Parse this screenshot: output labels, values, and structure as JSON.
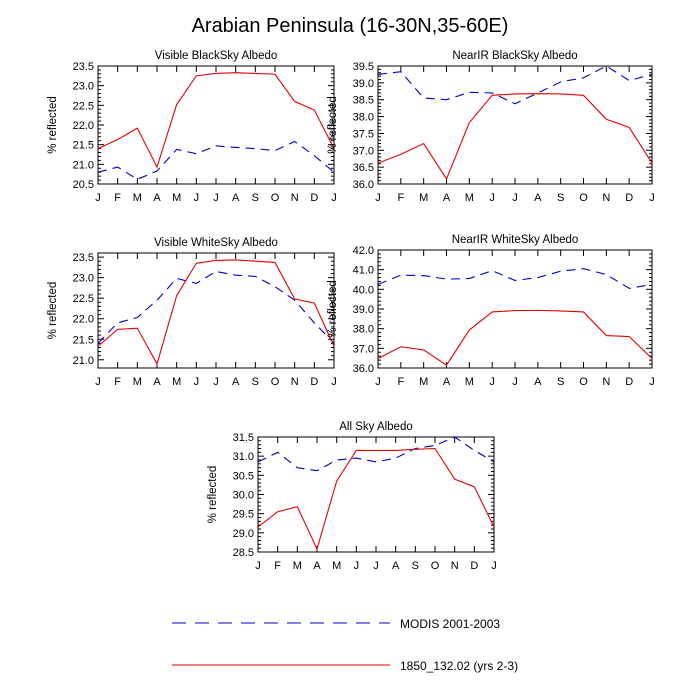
{
  "title": "Arabian Peninsula (16-30N,35-60E)",
  "colors": {
    "modis": "#0000cc",
    "model": "#e60000",
    "axis": "#000000"
  },
  "legend": {
    "placement": "bottom-center",
    "entries": [
      {
        "name": "MODIS 2001-2003",
        "color": "#0000cc",
        "dash": "dashed"
      },
      {
        "name": "1850_132.02 (yrs 2-3)",
        "color": "#e60000",
        "dash": "solid"
      }
    ]
  },
  "chart_data": [
    {
      "type": "line",
      "title": "Visible BlackSky Albedo",
      "xlabel": "",
      "ylabel": "% reflected",
      "categories": [
        "J",
        "F",
        "M",
        "A",
        "M",
        "J",
        "J",
        "A",
        "S",
        "O",
        "N",
        "D",
        "J"
      ],
      "ylim": [
        20.5,
        23.5
      ],
      "yticks": [
        "20.5",
        "21.0",
        "21.5",
        "22.0",
        "22.5",
        "23.0",
        "23.5"
      ],
      "grid": false,
      "series": [
        {
          "name": "MODIS 2001-2003",
          "values": [
            20.8,
            20.93,
            20.62,
            20.83,
            21.38,
            21.27,
            21.47,
            21.43,
            21.4,
            21.35,
            21.58,
            21.22,
            20.8
          ]
        },
        {
          "name": "1850_132.02 (yrs 2-3)",
          "values": [
            21.4,
            21.63,
            21.92,
            20.93,
            22.52,
            23.25,
            23.31,
            23.33,
            23.31,
            23.29,
            22.6,
            22.38,
            21.4
          ]
        }
      ]
    },
    {
      "type": "line",
      "title": "NearIR BlackSky Albedo",
      "xlabel": "",
      "ylabel": "% reflected",
      "categories": [
        "J",
        "F",
        "M",
        "A",
        "M",
        "J",
        "J",
        "A",
        "S",
        "O",
        "N",
        "D",
        "J"
      ],
      "ylim": [
        36.0,
        39.5
      ],
      "yticks": [
        "36.0",
        "36.5",
        "37.0",
        "37.5",
        "38.0",
        "38.5",
        "39.0",
        "39.5"
      ],
      "grid": false,
      "series": [
        {
          "name": "MODIS 2001-2003",
          "values": [
            39.25,
            39.33,
            38.55,
            38.5,
            38.72,
            38.7,
            38.38,
            38.7,
            39.03,
            39.15,
            39.5,
            39.07,
            39.25
          ]
        },
        {
          "name": "1850_132.02 (yrs 2-3)",
          "values": [
            36.62,
            36.88,
            37.2,
            36.15,
            37.82,
            38.63,
            38.67,
            38.68,
            38.67,
            38.63,
            37.92,
            37.68,
            36.62
          ]
        }
      ]
    },
    {
      "type": "line",
      "title": "Visible WhiteSky Albedo",
      "xlabel": "",
      "ylabel": "% reflected",
      "categories": [
        "J",
        "F",
        "M",
        "A",
        "M",
        "J",
        "J",
        "A",
        "S",
        "O",
        "N",
        "D",
        "J"
      ],
      "ylim": [
        20.8,
        23.6
      ],
      "yticks": [
        "21.0",
        "21.5",
        "22.0",
        "22.5",
        "23.0",
        "23.5"
      ],
      "grid": false,
      "series": [
        {
          "name": "MODIS 2001-2003",
          "values": [
            21.4,
            21.9,
            22.03,
            22.45,
            22.98,
            22.86,
            23.15,
            23.06,
            23.03,
            22.78,
            22.45,
            21.9,
            21.4
          ]
        },
        {
          "name": "1850_132.02 (yrs 2-3)",
          "values": [
            21.33,
            21.74,
            21.77,
            20.9,
            22.56,
            23.35,
            23.42,
            23.43,
            23.4,
            23.37,
            22.48,
            22.38,
            21.33
          ]
        }
      ]
    },
    {
      "type": "line",
      "title": "NearIR WhiteSky Albedo",
      "xlabel": "",
      "ylabel": "% reflected",
      "categories": [
        "J",
        "F",
        "M",
        "A",
        "M",
        "J",
        "J",
        "A",
        "S",
        "O",
        "N",
        "D",
        "J"
      ],
      "ylim": [
        36.0,
        42.0
      ],
      "yticks": [
        "36.0",
        "37.0",
        "38.0",
        "39.0",
        "40.0",
        "41.0",
        "42.0"
      ],
      "grid": false,
      "series": [
        {
          "name": "MODIS 2001-2003",
          "values": [
            40.25,
            40.72,
            40.7,
            40.52,
            40.55,
            40.95,
            40.45,
            40.6,
            40.92,
            41.05,
            40.75,
            40.05,
            40.25
          ]
        },
        {
          "name": "1850_132.02 (yrs 2-3)",
          "values": [
            36.48,
            37.08,
            36.92,
            36.15,
            37.93,
            38.85,
            38.92,
            38.93,
            38.9,
            38.85,
            37.65,
            37.6,
            36.48
          ]
        }
      ]
    },
    {
      "type": "line",
      "title": "All Sky Albedo",
      "xlabel": "",
      "ylabel": "% reflected",
      "categories": [
        "J",
        "F",
        "M",
        "A",
        "M",
        "J",
        "J",
        "A",
        "S",
        "O",
        "N",
        "D",
        "J"
      ],
      "ylim": [
        28.5,
        31.5
      ],
      "yticks": [
        "28.5",
        "29.0",
        "29.5",
        "30.0",
        "30.5",
        "31.0",
        "31.5"
      ],
      "grid": false,
      "series": [
        {
          "name": "MODIS 2001-2003",
          "values": [
            30.85,
            31.1,
            30.7,
            30.62,
            30.9,
            30.95,
            30.85,
            30.95,
            31.2,
            31.28,
            31.5,
            31.15,
            30.85
          ]
        },
        {
          "name": "1850_132.02 (yrs 2-3)",
          "values": [
            29.15,
            29.55,
            29.68,
            28.58,
            30.35,
            31.15,
            31.15,
            31.15,
            31.18,
            31.2,
            30.4,
            30.2,
            29.15
          ]
        }
      ]
    }
  ]
}
